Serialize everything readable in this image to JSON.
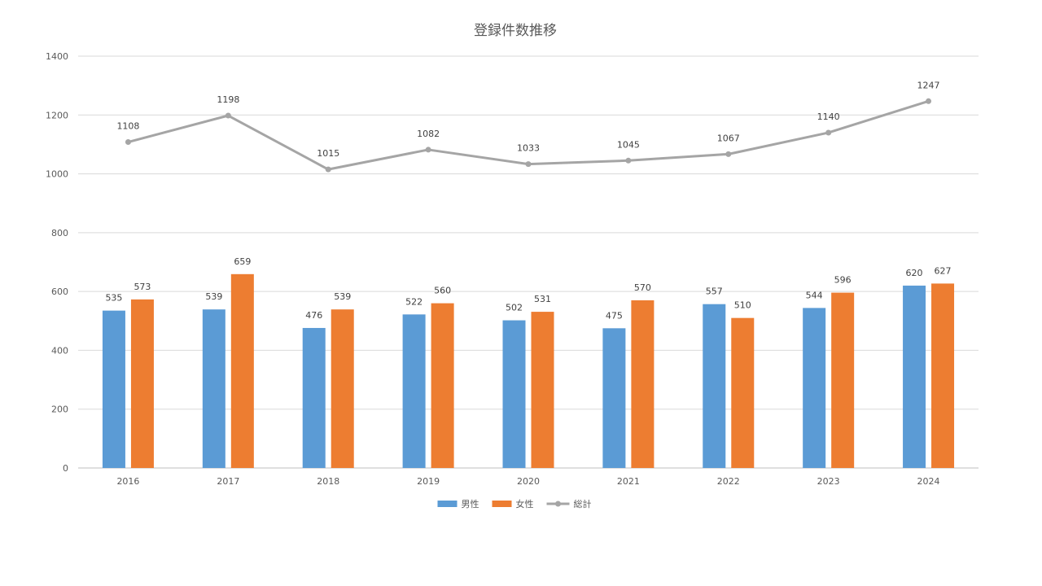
{
  "chart_data": {
    "type": "bar",
    "title": "登録件数推移",
    "xlabel": "",
    "ylabel": "",
    "categories": [
      "2016",
      "2017",
      "2018",
      "2019",
      "2020",
      "2021",
      "2022",
      "2023",
      "2024"
    ],
    "ylim": [
      0,
      1400
    ],
    "yticks": [
      0,
      200,
      400,
      600,
      800,
      1000,
      1200,
      1400
    ],
    "grid": true,
    "legend_position": "bottom",
    "series": [
      {
        "name": "男性",
        "type": "bar",
        "color": "#5B9BD5",
        "values": [
          535,
          539,
          476,
          522,
          502,
          475,
          557,
          544,
          620
        ]
      },
      {
        "name": "女性",
        "type": "bar",
        "color": "#ED7D31",
        "values": [
          573,
          659,
          539,
          560,
          531,
          570,
          510,
          596,
          627
        ]
      },
      {
        "name": "総計",
        "type": "line",
        "color": "#A5A5A5",
        "values": [
          1108,
          1198,
          1015,
          1082,
          1033,
          1045,
          1067,
          1140,
          1247
        ]
      }
    ]
  }
}
